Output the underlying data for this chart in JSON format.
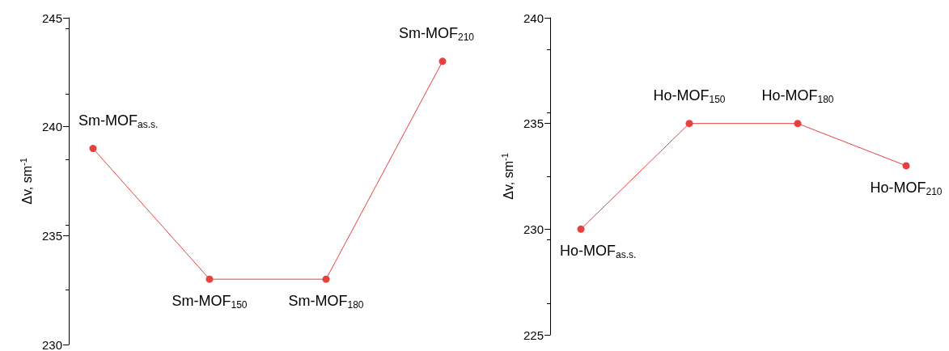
{
  "chart_data": [
    {
      "type": "line",
      "ylabel": "Δv, sm$^{-1}$",
      "categories": [
        null,
        null,
        null,
        null
      ],
      "series": [
        {
          "color": "#e8403f",
          "values": [
            239,
            233,
            233,
            243
          ]
        }
      ],
      "annotations": [
        "Sm-MOF$_{as.s.}$",
        "Sm-MOF$_{150}$",
        "Sm-MOF$_{180}$",
        "Sm-MOF$_{210}$"
      ],
      "ylim": [
        230,
        245
      ],
      "yticks": [
        230,
        235,
        240,
        245
      ],
      "grid": false,
      "marker": "circle",
      "line_style": "solid",
      "tick_labels": "y"
    },
    {
      "type": "line",
      "ylabel": "Δv, sm$^{-1}$",
      "categories": [
        null,
        null,
        null,
        null
      ],
      "series": [
        {
          "color": "#e8403f",
          "values": [
            230,
            235,
            235,
            233
          ]
        }
      ],
      "annotations": [
        "Ho-MOF$_{as.s.}$",
        "Ho-MOF$_{150}$",
        "Ho-MOF$_{180}$",
        "Ho-MOF$_{210}$"
      ],
      "ylim": [
        225,
        240
      ],
      "yticks": [
        225,
        230,
        235,
        240
      ],
      "grid": false,
      "marker": "circle",
      "line_style": "solid",
      "tick_labels": "y"
    }
  ]
}
